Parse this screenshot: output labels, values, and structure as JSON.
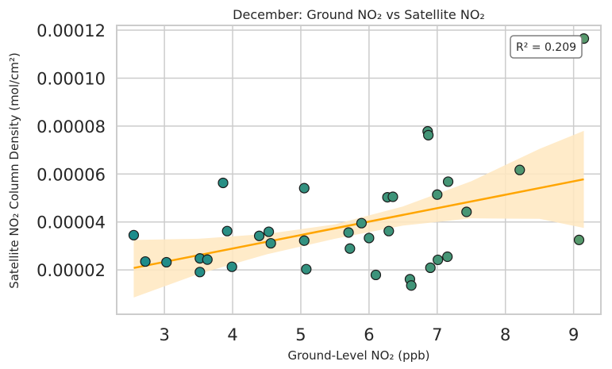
{
  "chart_data": {
    "type": "scatter",
    "title": "December: Ground NO₂ vs Satellite NO₂",
    "xlabel": "Ground-Level NO₂ (ppb)",
    "ylabel": "Satellite NO₂ Column Density (mol/cm²)",
    "xlim": [
      2.3,
      9.4
    ],
    "ylim": [
      1.5e-06,
      0.000122
    ],
    "x_ticks": [
      3,
      4,
      5,
      6,
      7,
      8,
      9
    ],
    "x_tick_labels": [
      "3",
      "4",
      "5",
      "6",
      "7",
      "8",
      "9"
    ],
    "y_ticks": [
      2e-05,
      4e-05,
      6e-05,
      8e-05,
      0.0001,
      0.00012
    ],
    "y_tick_labels": [
      "0.00002",
      "0.00004",
      "0.00006",
      "0.00008",
      "0.00010",
      "0.00012"
    ],
    "grid": true,
    "points": [
      {
        "x": 2.55,
        "y": 3.45e-05
      },
      {
        "x": 2.72,
        "y": 2.35e-05
      },
      {
        "x": 3.03,
        "y": 2.32e-05
      },
      {
        "x": 3.52,
        "y": 2.48e-05
      },
      {
        "x": 3.52,
        "y": 1.91e-05
      },
      {
        "x": 3.63,
        "y": 2.43e-05
      },
      {
        "x": 3.86,
        "y": 5.63e-05
      },
      {
        "x": 3.92,
        "y": 3.62e-05
      },
      {
        "x": 3.99,
        "y": 2.13e-05
      },
      {
        "x": 4.39,
        "y": 3.42e-05
      },
      {
        "x": 4.53,
        "y": 3.59e-05
      },
      {
        "x": 4.56,
        "y": 3.11e-05
      },
      {
        "x": 5.05,
        "y": 5.41e-05
      },
      {
        "x": 5.05,
        "y": 3.22e-05
      },
      {
        "x": 5.08,
        "y": 2.03e-05
      },
      {
        "x": 5.7,
        "y": 3.56e-05
      },
      {
        "x": 5.72,
        "y": 2.89e-05
      },
      {
        "x": 5.89,
        "y": 3.95e-05
      },
      {
        "x": 6.0,
        "y": 3.33e-05
      },
      {
        "x": 6.1,
        "y": 1.79e-05
      },
      {
        "x": 6.27,
        "y": 5.03e-05
      },
      {
        "x": 6.29,
        "y": 3.62e-05
      },
      {
        "x": 6.35,
        "y": 5.05e-05
      },
      {
        "x": 6.6,
        "y": 1.61e-05
      },
      {
        "x": 6.62,
        "y": 1.35e-05
      },
      {
        "x": 6.86,
        "y": 7.78e-05
      },
      {
        "x": 6.87,
        "y": 7.62e-05
      },
      {
        "x": 6.9,
        "y": 2.09e-05
      },
      {
        "x": 7.0,
        "y": 5.14e-05
      },
      {
        "x": 7.01,
        "y": 2.42e-05
      },
      {
        "x": 7.15,
        "y": 2.55e-05
      },
      {
        "x": 7.16,
        "y": 5.68e-05
      },
      {
        "x": 7.43,
        "y": 4.42e-05
      },
      {
        "x": 8.21,
        "y": 6.17e-05
      },
      {
        "x": 9.08,
        "y": 3.25e-05
      },
      {
        "x": 9.15,
        "y": 0.0001165
      }
    ],
    "regression_line": {
      "x": [
        2.55,
        9.15
      ],
      "y": [
        2.08e-05,
        5.78e-05
      ]
    },
    "confidence_band": {
      "x": [
        2.55,
        3.5,
        4.5,
        5.5,
        6.5,
        7.5,
        8.5,
        9.15
      ],
      "lower": [
        8.5e-06,
        1.83e-05,
        2.65e-05,
        3.3e-05,
        3.85e-05,
        4.15e-05,
        4.13e-05,
        3.75e-05
      ],
      "upper": [
        3.25e-05,
        3.3e-05,
        3.5e-05,
        3.9e-05,
        4.65e-05,
        5.7e-05,
        7.05e-05,
        7.8e-05
      ]
    },
    "annotation": "R² = 0.209",
    "annotation_position": "top-right",
    "colors": {
      "point_low": "#1c8c8c",
      "point_high": "#5a9a6a",
      "point_edge": "#1a1a1a",
      "regression": "#ffa500",
      "band": "#ffe7c0",
      "grid": "#cccccc",
      "axes": "#cccccc"
    }
  }
}
